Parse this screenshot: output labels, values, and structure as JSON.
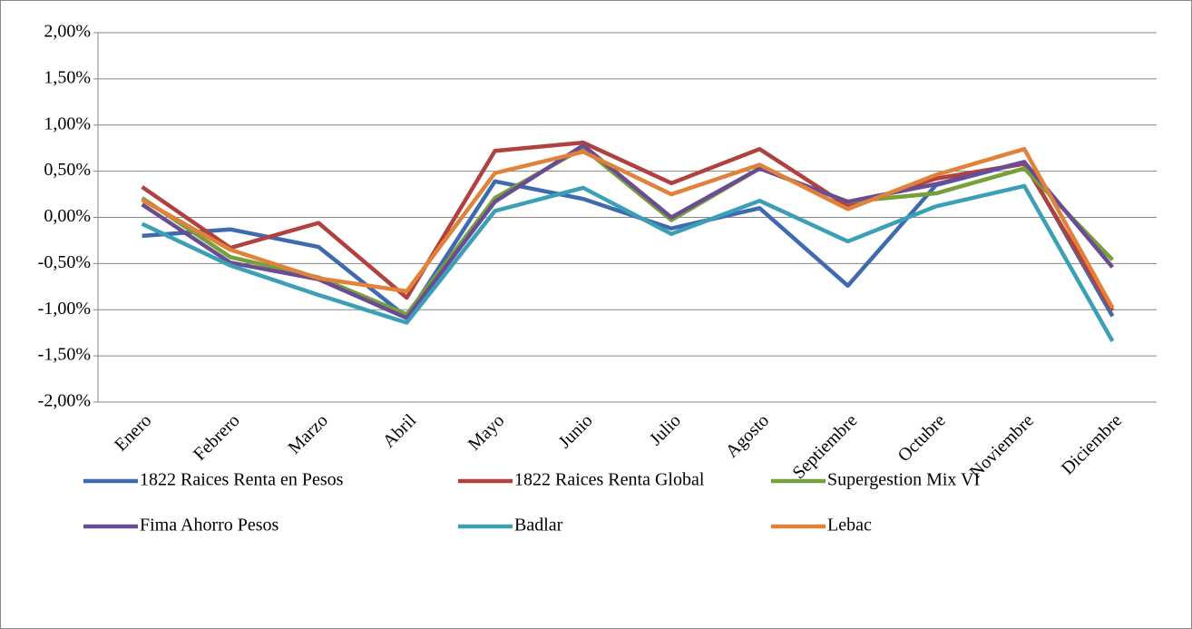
{
  "chart_data": {
    "type": "line",
    "categories": [
      "Enero",
      "Febrero",
      "Marzo",
      "Abril",
      "Mayo",
      "Junio",
      "Julio",
      "Agosto",
      "Septiembre",
      "Octubre",
      "Noviembre",
      "Diciembre"
    ],
    "series": [
      {
        "name": "1822 Raices Renta en Pesos",
        "color": "#3f6ab0",
        "values": [
          -0.2,
          -0.13,
          -0.32,
          -1.08,
          0.39,
          0.2,
          -0.12,
          0.1,
          -0.74,
          0.35,
          0.6,
          -1.07
        ]
      },
      {
        "name": "1822 Raices Renta Global",
        "color": "#b0413e",
        "values": [
          0.33,
          -0.33,
          -0.06,
          -0.87,
          0.72,
          0.81,
          0.37,
          0.74,
          0.12,
          0.42,
          0.58,
          -1.01
        ]
      },
      {
        "name": "Supergestion Mix VI",
        "color": "#77a03c",
        "values": [
          0.21,
          -0.43,
          -0.65,
          -1.05,
          0.21,
          0.75,
          -0.03,
          0.53,
          0.17,
          0.26,
          0.53,
          -0.46
        ]
      },
      {
        "name": "Fima Ahorro Pesos",
        "color": "#6a4c92",
        "values": [
          0.14,
          -0.49,
          -0.67,
          -1.09,
          0.17,
          0.78,
          0.0,
          0.53,
          0.17,
          0.36,
          0.6,
          -0.54
        ]
      },
      {
        "name": "Badlar",
        "color": "#3b9fb5",
        "values": [
          -0.07,
          -0.52,
          -0.84,
          -1.14,
          0.07,
          0.32,
          -0.18,
          0.18,
          -0.26,
          0.12,
          0.34,
          -1.34
        ]
      },
      {
        "name": "Lebac",
        "color": "#e0823a",
        "values": [
          0.19,
          -0.35,
          -0.66,
          -0.8,
          0.48,
          0.71,
          0.25,
          0.57,
          0.09,
          0.46,
          0.74,
          -0.98
        ]
      }
    ],
    "ylim": [
      -2,
      2
    ],
    "yticks": [
      {
        "value": -2,
        "label": "-2,00%"
      },
      {
        "value": -1.5,
        "label": "-1,50%"
      },
      {
        "value": -1,
        "label": "-1,00%"
      },
      {
        "value": -0.5,
        "label": "-0,50%"
      },
      {
        "value": 0,
        "label": "0,00%"
      },
      {
        "value": 0.5,
        "label": "0,50%"
      },
      {
        "value": 1,
        "label": "1,00%"
      },
      {
        "value": 1.5,
        "label": "1,50%"
      },
      {
        "value": 2,
        "label": "2,00%"
      }
    ],
    "grid": true,
    "legend": "bottom"
  }
}
